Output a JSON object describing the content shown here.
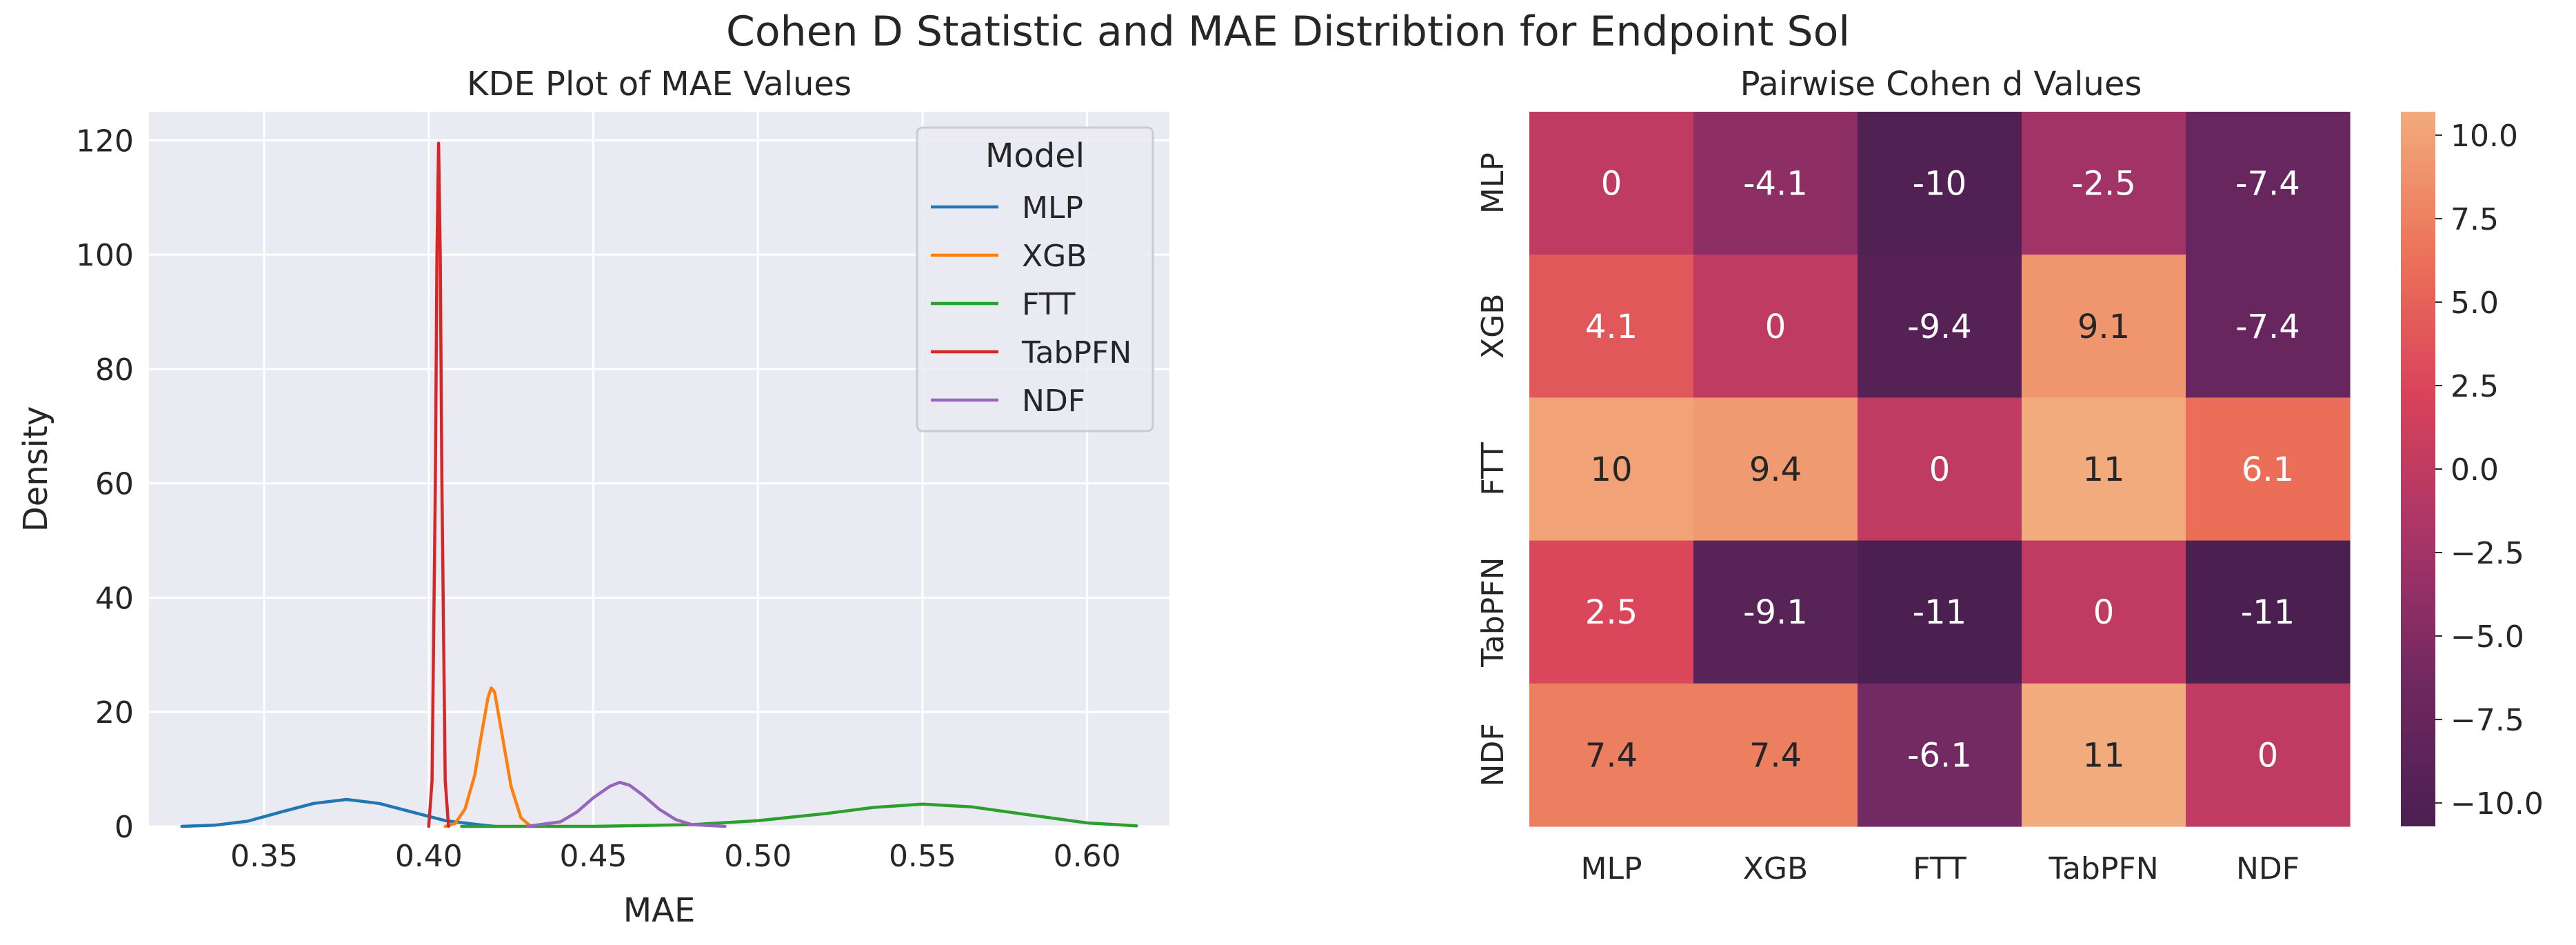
{
  "figure": {
    "suptitle": "Cohen D Statistic and MAE Distribtion for Endpoint Sol"
  },
  "chart_data": [
    {
      "type": "line",
      "subtype": "kde",
      "title": "KDE Plot of MAE Values",
      "xlabel": "MAE",
      "ylabel": "Density",
      "xlim": [
        0.315,
        0.625
      ],
      "ylim": [
        0,
        125
      ],
      "xticks": [
        0.35,
        0.4,
        0.45,
        0.5,
        0.55,
        0.6
      ],
      "xtick_labels": [
        "0.35",
        "0.40",
        "0.45",
        "0.50",
        "0.55",
        "0.60"
      ],
      "yticks": [
        0,
        20,
        40,
        60,
        80,
        100,
        120
      ],
      "ytick_labels": [
        "0",
        "20",
        "40",
        "60",
        "80",
        "100",
        "120"
      ],
      "grid": true,
      "legend": {
        "title": "Model",
        "placement": "top-right"
      },
      "series": [
        {
          "name": "MLP",
          "color": "#1f77b4",
          "x": [
            0.325,
            0.335,
            0.345,
            0.355,
            0.365,
            0.375,
            0.385,
            0.395,
            0.405,
            0.415,
            0.42
          ],
          "y": [
            0.0,
            0.2,
            0.9,
            2.5,
            4.0,
            4.7,
            4.0,
            2.5,
            1.0,
            0.3,
            0.0
          ]
        },
        {
          "name": "XGB",
          "color": "#ff7f0e",
          "x": [
            0.405,
            0.408,
            0.411,
            0.414,
            0.416,
            0.418,
            0.419,
            0.42,
            0.422,
            0.425,
            0.428,
            0.431
          ],
          "y": [
            0.0,
            0.5,
            3.0,
            9.0,
            16.0,
            22.5,
            24.2,
            23.5,
            17.0,
            7.0,
            1.5,
            0.0
          ]
        },
        {
          "name": "FTT",
          "color": "#2ca02c",
          "x": [
            0.41,
            0.45,
            0.48,
            0.5,
            0.52,
            0.535,
            0.55,
            0.565,
            0.58,
            0.6,
            0.615
          ],
          "y": [
            0.0,
            0.0,
            0.3,
            1.0,
            2.2,
            3.3,
            3.9,
            3.4,
            2.2,
            0.6,
            0.1
          ]
        },
        {
          "name": "TabPFN",
          "color": "#d62728",
          "x": [
            0.4,
            0.401,
            0.402,
            0.4025,
            0.403,
            0.4035,
            0.404,
            0.405,
            0.406
          ],
          "y": [
            0.0,
            8.0,
            60.0,
            100.0,
            119.5,
            100.0,
            60.0,
            8.0,
            0.0
          ]
        },
        {
          "name": "NDF",
          "color": "#9467bd",
          "x": [
            0.43,
            0.44,
            0.445,
            0.45,
            0.455,
            0.458,
            0.461,
            0.465,
            0.47,
            0.475,
            0.48,
            0.49
          ],
          "y": [
            0.0,
            0.8,
            2.5,
            5.0,
            7.0,
            7.7,
            7.2,
            5.5,
            3.0,
            1.2,
            0.3,
            0.0
          ]
        }
      ]
    },
    {
      "type": "heatmap",
      "title": "Pairwise Cohen d Values",
      "row_labels": [
        "MLP",
        "XGB",
        "FTT",
        "TabPFN",
        "NDF"
      ],
      "col_labels": [
        "MLP",
        "XGB",
        "FTT",
        "TabPFN",
        "NDF"
      ],
      "values": [
        [
          0,
          -4.1,
          -10,
          -2.5,
          -7.4
        ],
        [
          4.1,
          0,
          -9.4,
          9.1,
          -7.4
        ],
        [
          10,
          9.4,
          0,
          11,
          6.1
        ],
        [
          2.5,
          -9.1,
          -11,
          0,
          -11
        ],
        [
          7.4,
          7.4,
          -6.1,
          11,
          0
        ]
      ],
      "vmin": -10.7,
      "vmax": 10.7,
      "colormap": "flare",
      "colormap_stops": [
        "#4b2051",
        "#6f2860",
        "#a73468",
        "#d8425a",
        "#ec7259",
        "#f2ab7c"
      ],
      "colorbar_ticks": [
        10.0,
        7.5,
        5.0,
        2.5,
        0.0,
        -2.5,
        -5.0,
        -7.5,
        -10.0
      ],
      "colorbar_tick_labels": [
        "10.0",
        "7.5",
        "5.0",
        "2.5",
        "0.0",
        "−2.5",
        "−5.0",
        "−7.5",
        "−10.0"
      ]
    }
  ]
}
